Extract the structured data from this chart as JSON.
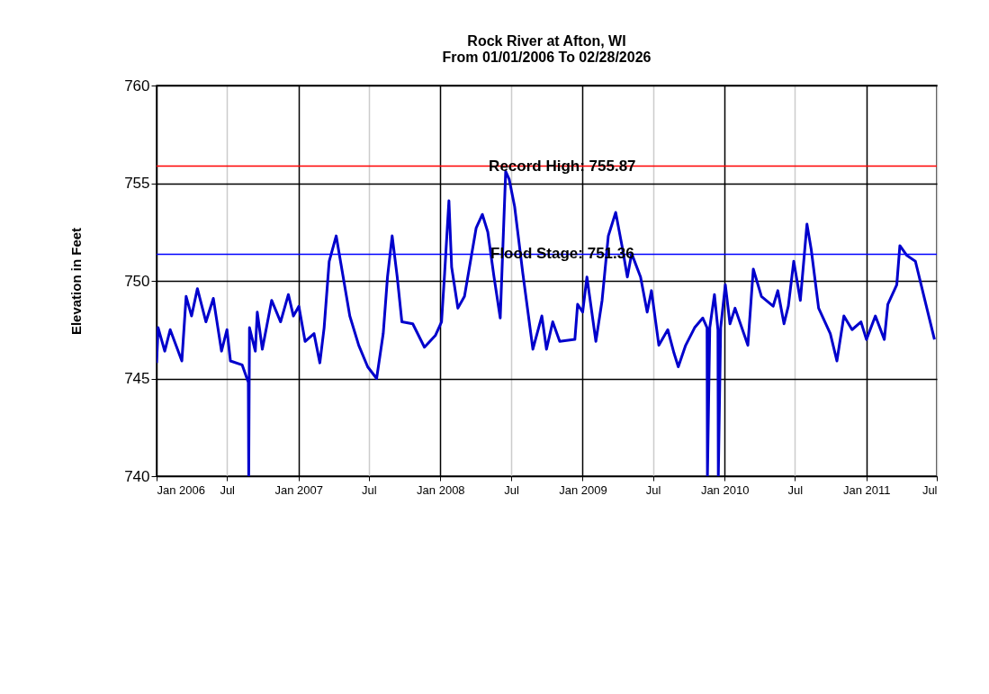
{
  "chart_data": {
    "type": "line",
    "title": "Rock River at Afton, WI",
    "subtitle": "From 01/01/2006 To 02/28/2026",
    "ylabel": "Elevation in Feet",
    "xlim": [
      "2006-01-01",
      "2011-07-01"
    ],
    "xticks": [
      {
        "value": "2006-01-01",
        "label": "Jan 2006"
      },
      {
        "value": "2006-07-01",
        "label": "Jul"
      },
      {
        "value": "2007-01-01",
        "label": "Jan 2007"
      },
      {
        "value": "2007-07-01",
        "label": "Jul"
      },
      {
        "value": "2008-01-01",
        "label": "Jan 2008"
      },
      {
        "value": "2008-07-01",
        "label": "Jul"
      },
      {
        "value": "2009-01-01",
        "label": "Jan 2009"
      },
      {
        "value": "2009-07-01",
        "label": "Jul"
      },
      {
        "value": "2010-01-01",
        "label": "Jan 2010"
      },
      {
        "value": "2010-07-01",
        "label": "Jul"
      },
      {
        "value": "2011-01-01",
        "label": "Jan 2011"
      },
      {
        "value": "2011-07-01",
        "label": "Jul"
      }
    ],
    "ylim": [
      740,
      760
    ],
    "yticks": [
      740,
      745,
      750,
      755,
      760
    ],
    "grid": true,
    "x": [
      "2006-01-01",
      "2006-01-05",
      "2006-01-22",
      "2006-02-05",
      "2006-03-07",
      "2006-03-18",
      "2006-04-01",
      "2006-04-16",
      "2006-05-08",
      "2006-05-27",
      "2006-06-17",
      "2006-07-01",
      "2006-07-10",
      "2006-08-09",
      "2006-08-25",
      "2006-08-26",
      "2006-08-28",
      "2006-09-12",
      "2006-09-17",
      "2006-09-30",
      "2006-10-24",
      "2006-11-16",
      "2006-12-06",
      "2006-12-19",
      "2007-01-02",
      "2007-01-18",
      "2007-02-10",
      "2007-02-25",
      "2007-03-08",
      "2007-03-21",
      "2007-04-08",
      "2007-04-20",
      "2007-05-13",
      "2007-06-05",
      "2007-06-28",
      "2007-07-21",
      "2007-08-07",
      "2007-08-18",
      "2007-08-30",
      "2007-09-12",
      "2007-09-24",
      "2007-10-22",
      "2007-11-21",
      "2007-12-19",
      "2008-01-04",
      "2008-01-12",
      "2008-01-23",
      "2008-01-30",
      "2008-02-15",
      "2008-03-03",
      "2008-04-02",
      "2008-04-18",
      "2008-05-02",
      "2008-05-18",
      "2008-06-03",
      "2008-06-17",
      "2008-06-26",
      "2008-07-10",
      "2008-07-31",
      "2008-08-26",
      "2008-09-18",
      "2008-09-30",
      "2008-10-16",
      "2008-11-03",
      "2008-12-12",
      "2008-12-19",
      "2009-01-01",
      "2009-01-12",
      "2009-02-04",
      "2009-02-20",
      "2009-03-08",
      "2009-03-27",
      "2009-04-14",
      "2009-04-26",
      "2009-05-07",
      "2009-05-30",
      "2009-06-16",
      "2009-06-27",
      "2009-07-16",
      "2009-08-08",
      "2009-08-24",
      "2009-09-04",
      "2009-09-23",
      "2009-10-16",
      "2009-11-06",
      "2009-11-17",
      "2009-11-18",
      "2009-11-24",
      "2009-12-06",
      "2009-12-15",
      "2009-12-16",
      "2009-12-22",
      "2010-01-03",
      "2010-01-15",
      "2010-01-28",
      "2010-03-02",
      "2010-03-16",
      "2010-04-06",
      "2010-05-06",
      "2010-05-18",
      "2010-06-03",
      "2010-06-14",
      "2010-06-28",
      "2010-07-15",
      "2010-08-01",
      "2010-08-12",
      "2010-08-31",
      "2010-09-30",
      "2010-10-17",
      "2010-11-04",
      "2010-11-25",
      "2010-12-18",
      "2011-01-01",
      "2011-01-24",
      "2011-02-16",
      "2011-02-25",
      "2011-03-20",
      "2011-03-28",
      "2011-04-15",
      "2011-05-07",
      "2011-05-29",
      "2011-06-25"
    ],
    "series": [
      {
        "color": "#0000cc",
        "values": [
          745.8,
          747.6,
          746.4,
          747.5,
          745.9,
          749.2,
          748.2,
          749.6,
          747.9,
          749.1,
          746.4,
          747.5,
          745.9,
          745.7,
          744.8,
          740,
          747.6,
          746.4,
          748.4,
          746.5,
          749.0,
          747.9,
          749.3,
          748.2,
          748.7,
          746.9,
          747.3,
          745.8,
          747.6,
          751.0,
          752.3,
          750.9,
          748.2,
          746.7,
          745.6,
          745.0,
          747.3,
          750.2,
          752.3,
          750.2,
          747.9,
          747.8,
          746.6,
          747.2,
          747.9,
          750.4,
          754.1,
          750.7,
          748.6,
          749.2,
          752.7,
          753.4,
          752.5,
          750.2,
          748.1,
          755.6,
          755.2,
          753.8,
          750.4,
          746.5,
          748.2,
          746.5,
          747.9,
          746.9,
          747.0,
          748.8,
          748.4,
          750.2,
          746.9,
          749.0,
          752.3,
          753.5,
          751.6,
          750.2,
          751.4,
          750.2,
          748.4,
          749.5,
          746.7,
          747.5,
          746.3,
          745.6,
          746.7,
          747.6,
          748.1,
          747.6,
          740,
          747.6,
          749.3,
          747.5,
          740,
          747.6,
          749.8,
          747.8,
          748.6,
          746.7,
          750.6,
          749.2,
          748.7,
          749.5,
          747.8,
          748.7,
          751.0,
          749.0,
          752.9,
          751.6,
          748.6,
          747.3,
          745.9,
          748.2,
          747.5,
          747.9,
          747.0,
          748.2,
          747.0,
          748.8,
          749.8,
          751.8,
          751.3,
          751.0,
          749.2,
          747.0
        ]
      }
    ],
    "ref_lines": [
      {
        "axis": "y",
        "value": 755.87,
        "label": "Record High: 755.87",
        "color": "#ff0000"
      },
      {
        "axis": "y",
        "value": 751.36,
        "label": "Flood Stage: 751.36",
        "color": "#0000ff"
      }
    ]
  }
}
